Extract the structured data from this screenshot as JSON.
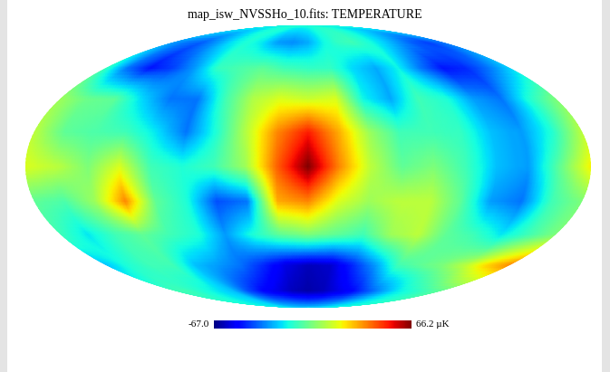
{
  "chart_data": {
    "type": "heatmap",
    "title": "map_isw_NVSSHo_10.fits: TEMPERATURE",
    "tick_labels": false,
    "lat": [
      90,
      72,
      54,
      36,
      18,
      0,
      -18,
      -36,
      -54,
      -72,
      -90
    ],
    "lon": [
      -180,
      -160,
      -140,
      -120,
      -100,
      -80,
      -60,
      -40,
      -20,
      0,
      20,
      40,
      60,
      80,
      100,
      120,
      140,
      160,
      180
    ],
    "cells": [
      [
        -15,
        -15,
        -15,
        -15,
        -15,
        -15,
        -15,
        -15,
        -15,
        -15,
        -15,
        -15,
        -15,
        -15,
        -15,
        -15,
        -15,
        -15,
        -15
      ],
      [
        -30,
        -35,
        -38,
        -30,
        -20,
        -15,
        -20,
        -30,
        -32,
        -28,
        -18,
        -12,
        -10,
        -15,
        -22,
        -30,
        -38,
        -42,
        -35
      ],
      [
        -10,
        -35,
        -48,
        -42,
        -30,
        -12,
        -8,
        -5,
        -10,
        -12,
        -12,
        -22,
        -28,
        -18,
        -35,
        -48,
        -45,
        -35,
        -22
      ],
      [
        5,
        -3,
        -5,
        -22,
        -35,
        -35,
        -10,
        8,
        15,
        12,
        15,
        -18,
        -28,
        -10,
        -15,
        -30,
        -35,
        -15,
        0
      ],
      [
        10,
        -5,
        -8,
        -10,
        -20,
        -35,
        -15,
        10,
        35,
        50,
        30,
        5,
        -10,
        -10,
        -12,
        -25,
        -30,
        -15,
        10
      ],
      [
        15,
        10,
        0,
        15,
        -10,
        -15,
        -10,
        5,
        40,
        66,
        35,
        10,
        -5,
        0,
        -10,
        -25,
        -30,
        -5,
        20
      ],
      [
        -5,
        -8,
        5,
        35,
        -5,
        -15,
        -40,
        -35,
        30,
        35,
        15,
        5,
        10,
        10,
        -5,
        -30,
        -35,
        -10,
        0
      ],
      [
        -10,
        -20,
        -10,
        -5,
        -10,
        -15,
        -30,
        -15,
        -5,
        0,
        -5,
        -10,
        5,
        10,
        -5,
        -10,
        -20,
        -10,
        0
      ],
      [
        -25,
        -15,
        -10,
        -10,
        -25,
        -30,
        -35,
        -45,
        -55,
        -60,
        -58,
        -45,
        -30,
        -10,
        -5,
        0,
        10,
        25,
        35
      ],
      [
        -10,
        -10,
        -15,
        -20,
        -25,
        -40,
        -50,
        -55,
        -60,
        -62,
        -60,
        -55,
        -50,
        -40,
        -30,
        -20,
        -15,
        -10,
        -5
      ],
      [
        -20,
        -20,
        -20,
        -20,
        -20,
        -20,
        -20,
        -20,
        -20,
        -20,
        -20,
        -20,
        -20,
        -20,
        -20,
        -20,
        -20,
        -20,
        -20
      ]
    ],
    "colorbar": {
      "range": [
        -67.0,
        66.2
      ],
      "ticks": [
        -67.0,
        66.2
      ],
      "unit": "µK"
    }
  }
}
